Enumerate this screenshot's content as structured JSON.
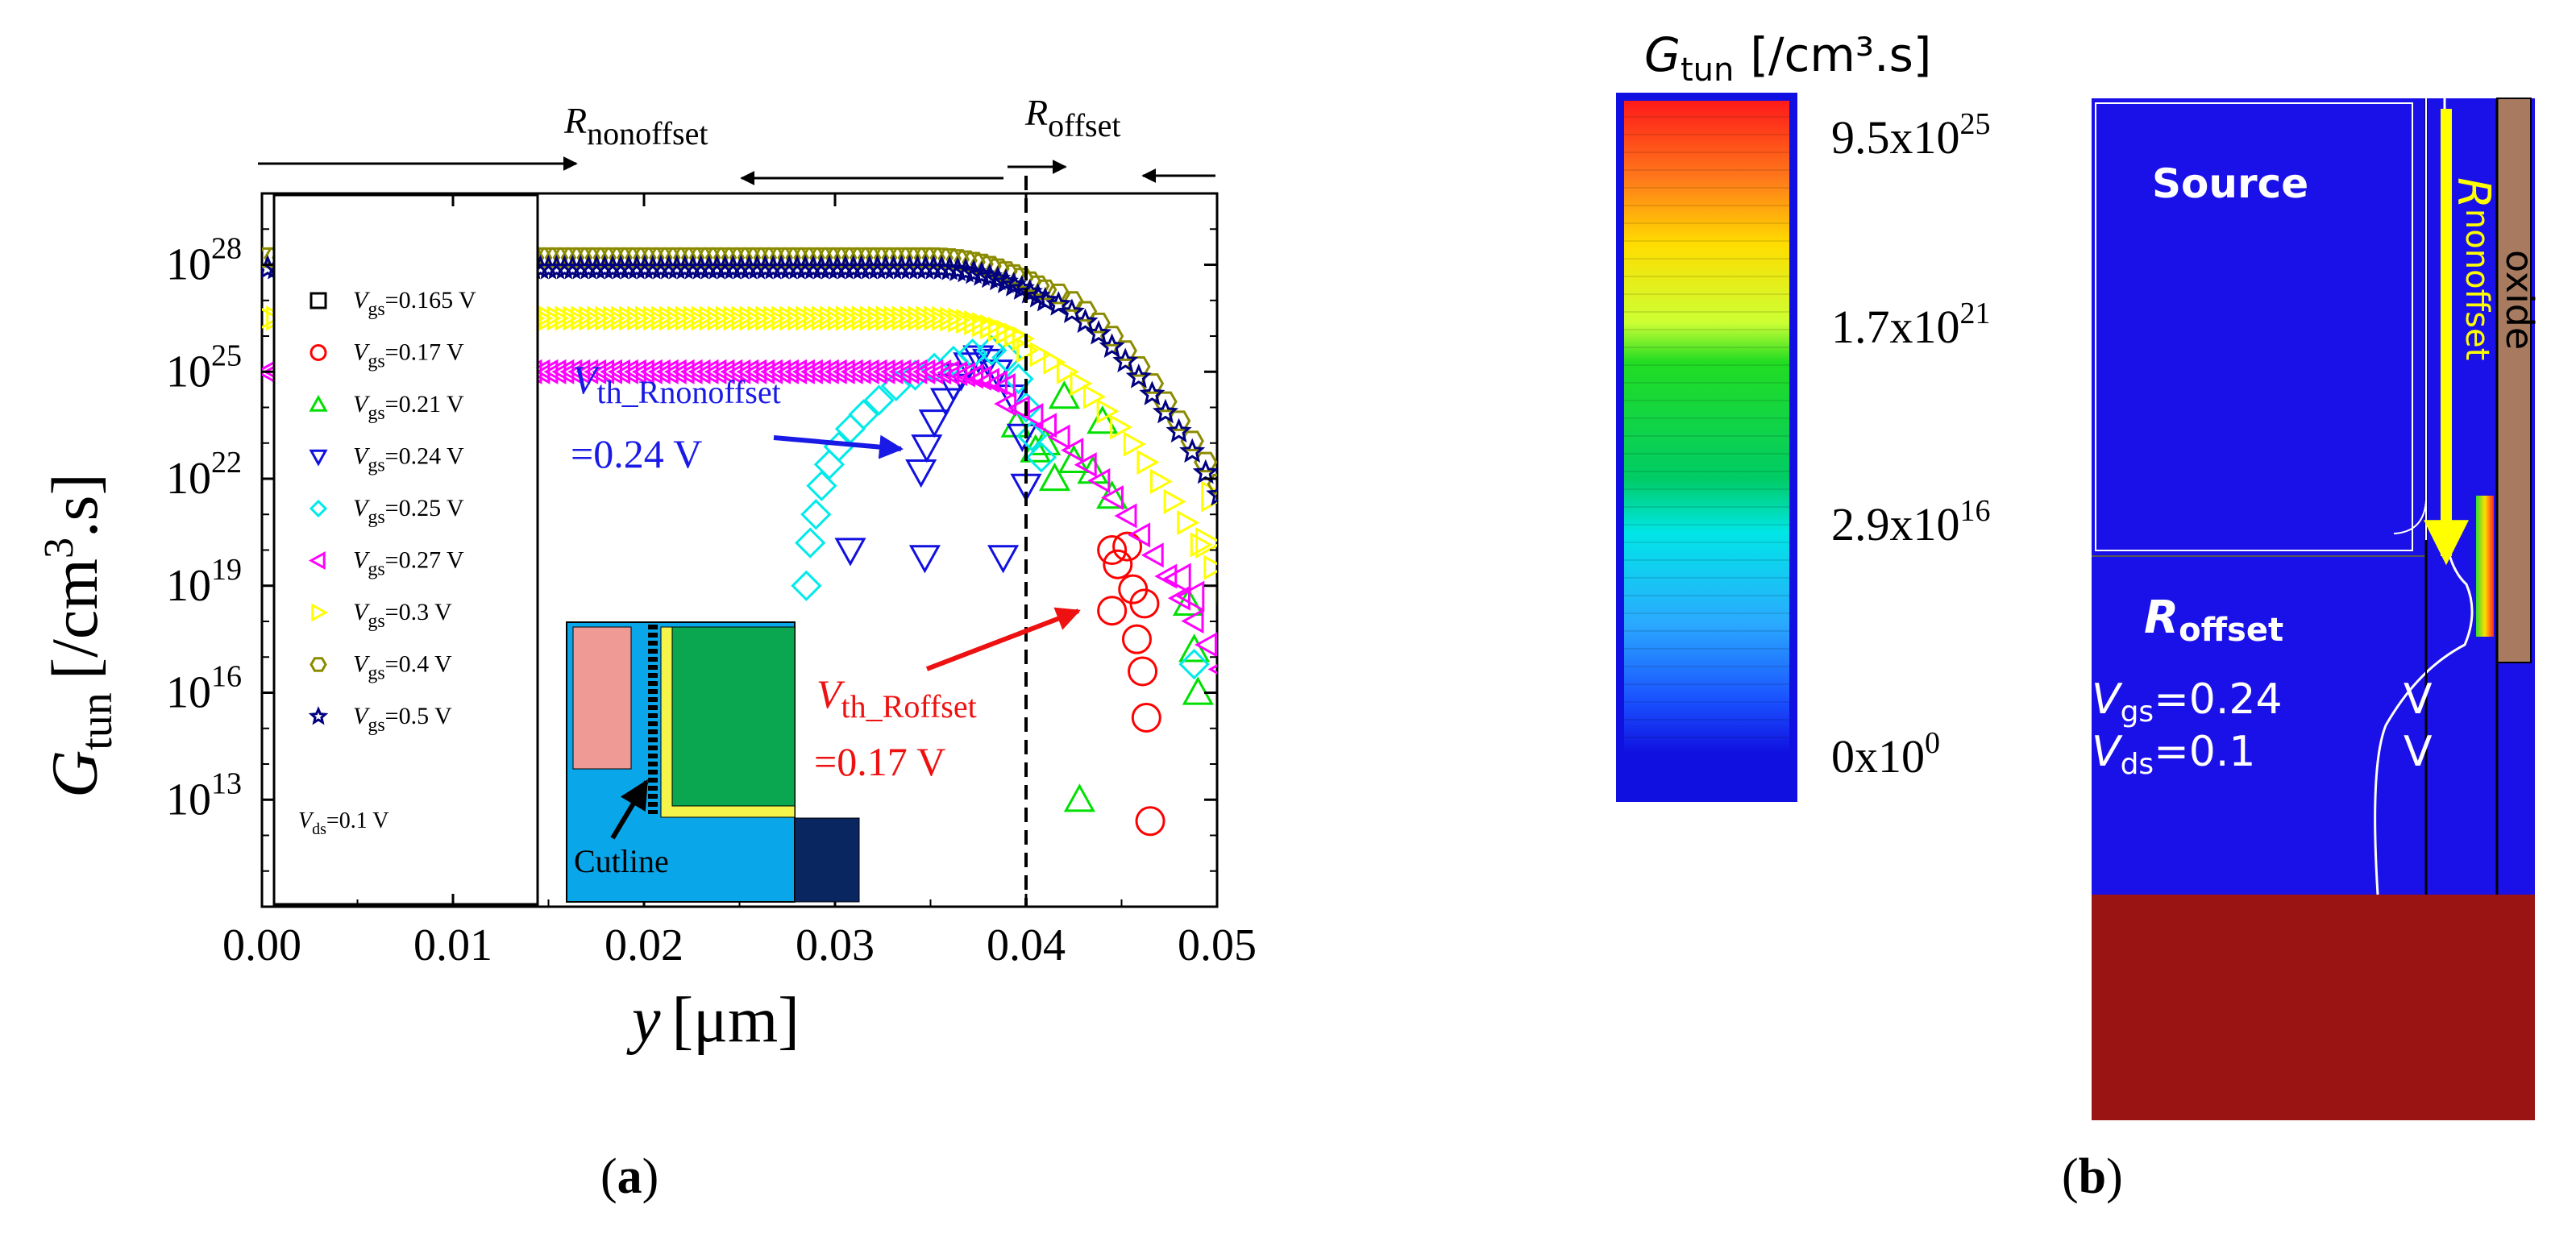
{
  "panels": {
    "a_label_open": "(",
    "a_label_letter": "a",
    "a_label_close": ")",
    "b_label_open": "(",
    "b_label_letter": "b",
    "b_label_close": ")"
  },
  "chart_data": {
    "type": "scatter",
    "xlabel_var": "y",
    "xlabel_unit": "[μm]",
    "ylabel_var": "G",
    "ylabel_sub": "tun",
    "ylabel_unit_pre": "[/cm",
    "ylabel_unit_sup": "3",
    "ylabel_unit_post": ".s]",
    "xlim": [
      0.0,
      0.05
    ],
    "ylim_log10": [
      10,
      30
    ],
    "x_ticks": [
      {
        "value": 0.0,
        "label": "0.00"
      },
      {
        "value": 0.01,
        "label": "0.01"
      },
      {
        "value": 0.02,
        "label": "0.02"
      },
      {
        "value": 0.03,
        "label": "0.03"
      },
      {
        "value": 0.04,
        "label": "0.04"
      },
      {
        "value": 0.05,
        "label": "0.05"
      }
    ],
    "y_ticks": [
      {
        "exp": 13,
        "base": "10",
        "sup": "13"
      },
      {
        "exp": 16,
        "base": "10",
        "sup": "16"
      },
      {
        "exp": 19,
        "base": "10",
        "sup": "19"
      },
      {
        "exp": 22,
        "base": "10",
        "sup": "22"
      },
      {
        "exp": 25,
        "base": "10",
        "sup": "25"
      },
      {
        "exp": 28,
        "base": "10",
        "sup": "28"
      }
    ],
    "region_nonoffset": {
      "letter": "R",
      "sub": "nonoffset"
    },
    "region_offset": {
      "letter": "R",
      "sub": "offset"
    },
    "boundary_x": 0.04,
    "series": [
      {
        "name": "Vgs=0.165 V",
        "v": "V",
        "sub": "gs",
        "label": "=0.165 V",
        "color": "#000000",
        "marker": "square",
        "plateau": 0,
        "x_end": 0,
        "points": []
      },
      {
        "name": "Vgs=0.17 V",
        "v": "V",
        "sub": "gs",
        "label": "=0.17 V",
        "color": "#ff0000",
        "marker": "circle",
        "plateau": 0,
        "x_end": 0,
        "points": [
          [
            0.0445,
            20.0
          ],
          [
            0.0453,
            20.1
          ],
          [
            0.0448,
            19.6
          ],
          [
            0.0456,
            18.9
          ],
          [
            0.0462,
            18.5
          ],
          [
            0.0445,
            18.3
          ],
          [
            0.0458,
            17.5
          ],
          [
            0.0461,
            16.6
          ],
          [
            0.0463,
            15.3
          ],
          [
            0.0465,
            12.4
          ]
        ]
      },
      {
        "name": "Vgs=0.21 V",
        "v": "V",
        "sub": "gs",
        "label": "=0.21 V",
        "color": "#00e000",
        "marker": "triangle-up",
        "plateau": 0,
        "x_end": 0,
        "points": [
          [
            0.0395,
            23.5
          ],
          [
            0.0405,
            22.8
          ],
          [
            0.041,
            23.0
          ],
          [
            0.042,
            24.3
          ],
          [
            0.0425,
            22.5
          ],
          [
            0.0415,
            22.0
          ],
          [
            0.0435,
            22.2
          ],
          [
            0.044,
            23.6
          ],
          [
            0.0445,
            21.5
          ],
          [
            0.0428,
            13.0
          ],
          [
            0.0485,
            18.5
          ],
          [
            0.049,
            16.0
          ],
          [
            0.0488,
            17.2
          ]
        ]
      },
      {
        "name": "Vgs=0.24 V",
        "v": "V",
        "sub": "gs",
        "label": "=0.24 V",
        "color": "#1010e0",
        "marker": "triangle-down",
        "plateau": 0,
        "x_end": 0,
        "points": [
          [
            0.0345,
            22.2
          ],
          [
            0.0348,
            22.9
          ],
          [
            0.0352,
            23.6
          ],
          [
            0.0358,
            24.2
          ],
          [
            0.0362,
            24.6
          ],
          [
            0.0366,
            24.9
          ],
          [
            0.037,
            25.2
          ],
          [
            0.0375,
            25.4
          ],
          [
            0.038,
            25.3
          ],
          [
            0.0385,
            25.0
          ],
          [
            0.0393,
            24.3
          ],
          [
            0.0398,
            23.2
          ],
          [
            0.04,
            21.8
          ],
          [
            0.0308,
            20.0
          ],
          [
            0.0347,
            19.8
          ],
          [
            0.0388,
            19.8
          ]
        ]
      },
      {
        "name": "Vgs=0.25 V",
        "v": "V",
        "sub": "gs",
        "label": "=0.25 V",
        "color": "#00eaea",
        "marker": "diamond",
        "plateau": 0,
        "x_end": 0,
        "points": [
          [
            0.0285,
            19.0
          ],
          [
            0.0287,
            20.2
          ],
          [
            0.029,
            21.0
          ],
          [
            0.0293,
            21.8
          ],
          [
            0.0297,
            22.4
          ],
          [
            0.0302,
            22.9
          ],
          [
            0.0308,
            23.4
          ],
          [
            0.0315,
            23.8
          ],
          [
            0.0323,
            24.2
          ],
          [
            0.0332,
            24.6
          ],
          [
            0.0342,
            24.9
          ],
          [
            0.0352,
            25.1
          ],
          [
            0.0362,
            25.3
          ],
          [
            0.0372,
            25.5
          ],
          [
            0.0382,
            25.6
          ],
          [
            0.039,
            25.4
          ],
          [
            0.0396,
            24.8
          ],
          [
            0.04,
            24.0
          ],
          [
            0.0403,
            23.2
          ],
          [
            0.0408,
            22.6
          ],
          [
            0.0488,
            16.8
          ]
        ]
      },
      {
        "name": "Vgs=0.27 V",
        "v": "V",
        "sub": "gs",
        "label": "=0.27 V",
        "color": "#ff00ff",
        "marker": "triangle-left",
        "plateau": 25.0,
        "x_end": 0.039,
        "points": [
          [
            0.048,
            19.2
          ],
          [
            0.0487,
            18.7
          ]
        ]
      },
      {
        "name": "Vgs=0.3 V",
        "v": "V",
        "sub": "gs",
        "label": "=0.3 V",
        "color": "#ffff00",
        "marker": "triangle-right",
        "plateau": 26.5,
        "x_end": 0.04,
        "points": [
          [
            0.0495,
            20.2
          ],
          [
            0.0498,
            21.5
          ]
        ]
      },
      {
        "name": "Vgs=0.4 V",
        "v": "V",
        "sub": "gs",
        "label": "=0.4 V",
        "color": "#8b8b00",
        "marker": "hexagon",
        "plateau": 28.2,
        "x_end": 0.041,
        "points": []
      },
      {
        "name": "Vgs=0.5 V",
        "v": "V",
        "sub": "gs",
        "label": "=0.5 V",
        "color": "#000080",
        "marker": "star",
        "plateau": 27.9,
        "x_end": 0.041,
        "points": []
      }
    ],
    "vds_note": {
      "v": "V",
      "sub": "ds",
      "label": "=0.1 V"
    },
    "ann_nonoffset": {
      "v": "V",
      "sub": "th_Rnonoffset",
      "value": "=0.24 V",
      "color": "#1a1ae6"
    },
    "ann_offset": {
      "v": "V",
      "sub": "th_Roffset",
      "value": "=0.17 V",
      "color": "#ee1111"
    },
    "inset_label": "Cutline"
  },
  "panel_b": {
    "title_var": "G",
    "title_sub": "tun",
    "title_unit": "[/cm³.s]",
    "scale_labels": [
      {
        "base": "9.5x10",
        "sup": "25"
      },
      {
        "base": "1.7x10",
        "sup": "21"
      },
      {
        "base": "2.9x10",
        "sup": "16"
      },
      {
        "base": "0x10",
        "sup": "0"
      }
    ],
    "source_label": "Source",
    "offset_letter": "R",
    "offset_sub": "offset",
    "nonoffset_letter": "R",
    "nonoffset_sub": "nonoffset",
    "oxide_label": "oxide",
    "vgs_v": "V",
    "vgs_sub": "gs",
    "vgs_eq": "=0.24",
    "vgs_unit": "V",
    "vds_v": "V",
    "vds_sub": "ds",
    "vds_eq": "=0.1",
    "vds_unit": "V"
  }
}
